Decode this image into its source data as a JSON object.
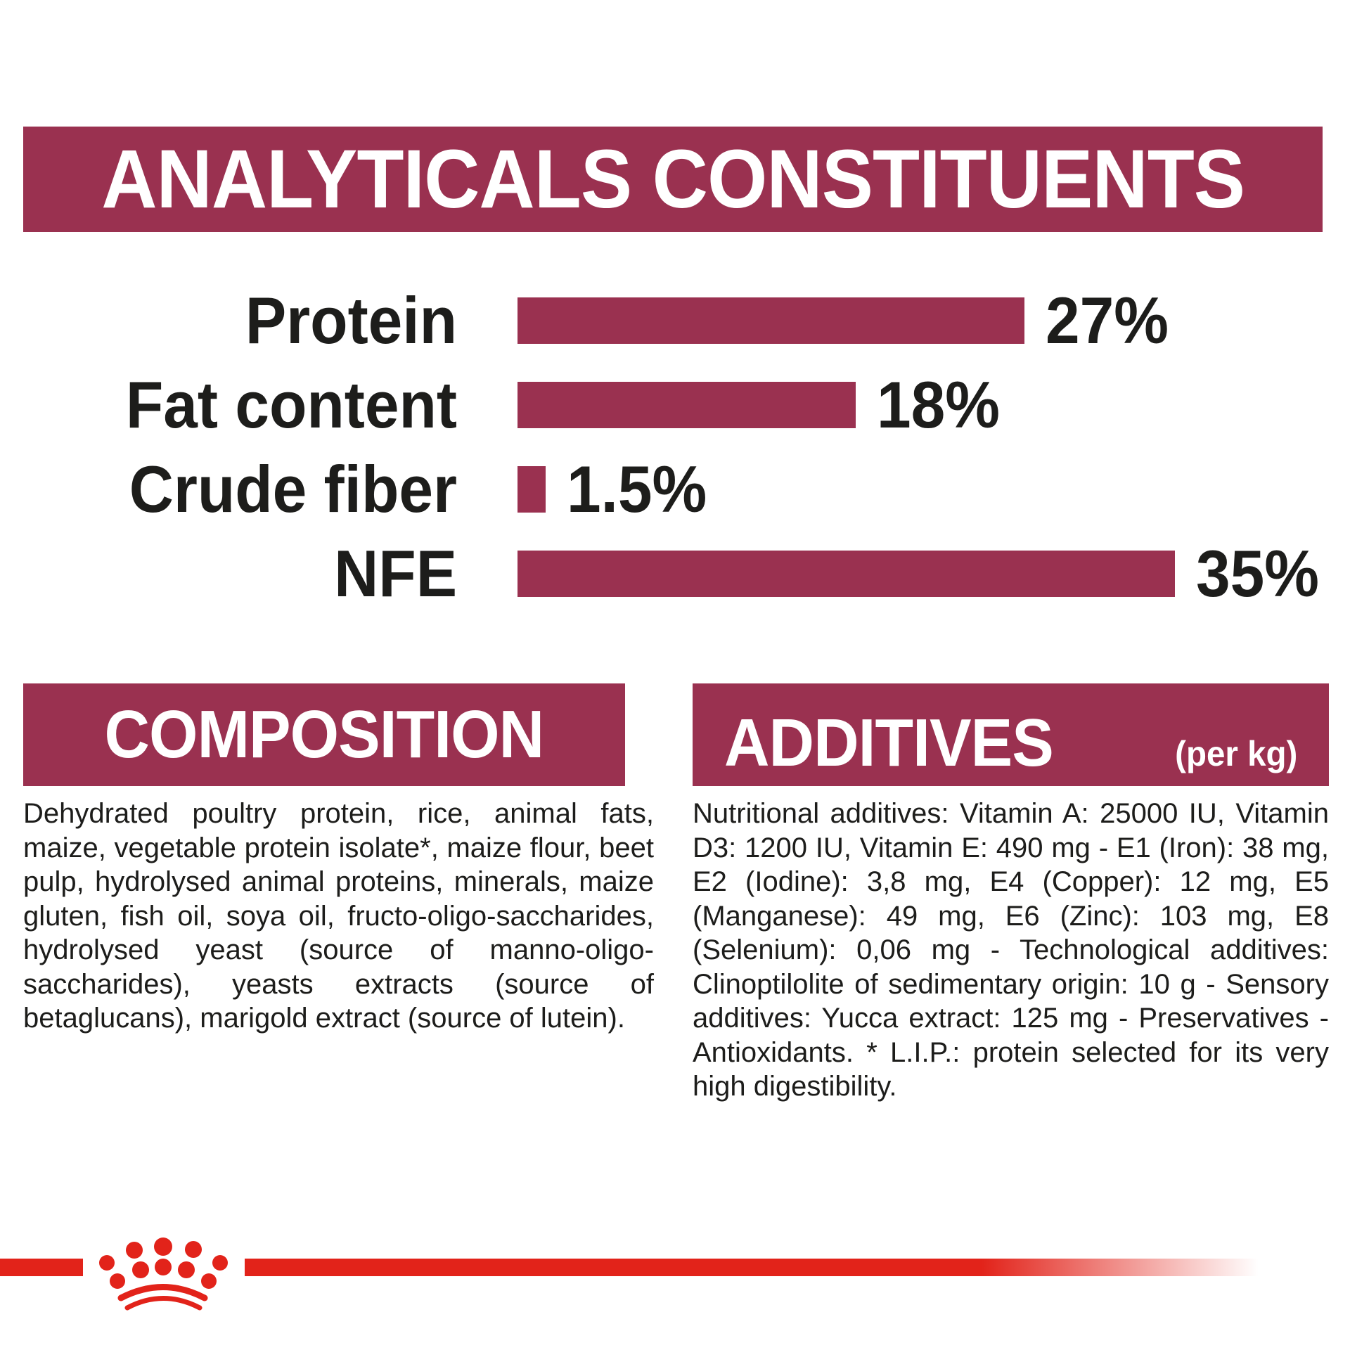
{
  "colors": {
    "maroon": "#9a3150",
    "brand_red": "#e2231a",
    "text": "#1d1d1b",
    "banner_text": "#ffffff",
    "background": "#ffffff"
  },
  "header": {
    "title": "ANALYTICALS CONSTITUENTS"
  },
  "chart_data": {
    "type": "bar",
    "orientation": "horizontal",
    "title": "ANALYTICALS CONSTITUENTS",
    "categories": [
      "Protein",
      "Fat content",
      "Crude fiber",
      "NFE"
    ],
    "values": [
      27,
      18,
      1.5,
      35
    ],
    "value_labels": [
      "27%",
      "18%",
      "1.5%",
      "35%"
    ],
    "unit": "%",
    "xlim": [
      0,
      40
    ],
    "grid": false,
    "bar_color": "#9a3150",
    "legend": "none"
  },
  "composition": {
    "heading": "COMPOSITION",
    "body": "Dehydrated poultry protein, rice, animal fats, maize, vegetable protein isolate*, maize flour, beet pulp, hydrolysed animal proteins, minerals, maize gluten, fish oil, soya oil, fructo-oligo-saccharides, hydrolysed yeast (source of manno-oligo-saccharides), yeasts extracts (source of betaglucans), marigold extract (source of lutein)."
  },
  "additives": {
    "heading": "ADDITIVES",
    "heading_suffix": "(per kg)",
    "body": "Nutritional additives: Vitamin A: 25000 IU, Vitamin D3: 1200 IU, Vitamin E: 490 mg - E1 (Iron): 38 mg, E2 (Iodine): 3,8 mg, E4 (Copper): 12 mg, E5 (Manganese): 49 mg, E6 (Zinc): 103 mg, E8 (Selenium): 0,06 mg - Technological additives: Clinoptilolite of sedimentary origin: 10 g - Sensory additives: Yucca extract: 125 mg - Preservatives - Antioxidants. * L.I.P.: protein selected for its very high digestibility."
  },
  "footer": {
    "logo": "royal-canin-crown"
  }
}
